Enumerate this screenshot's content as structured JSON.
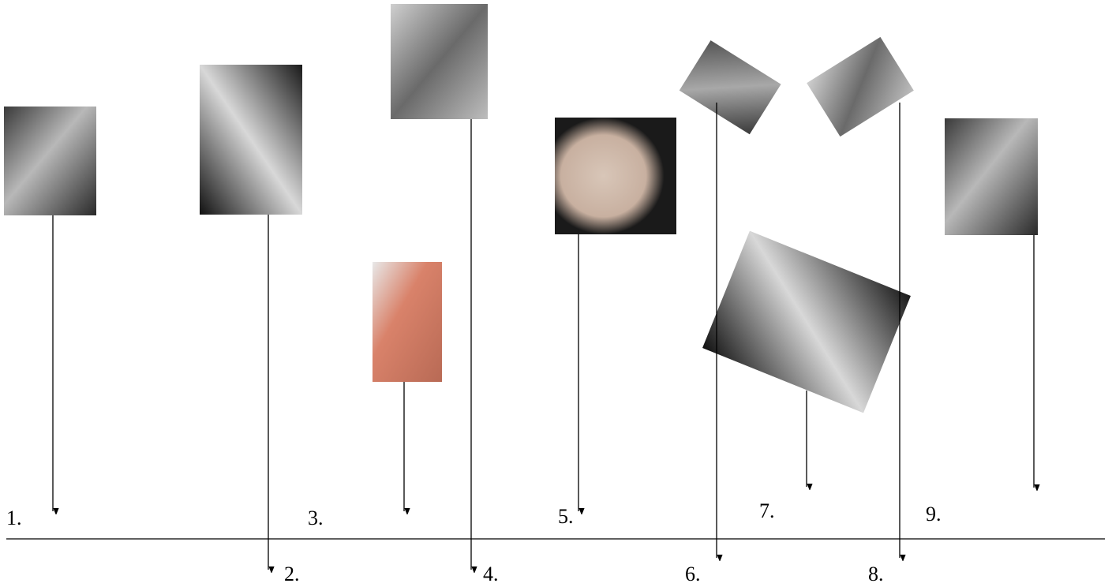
{
  "labels": [
    "1.",
    "2.",
    "3.",
    "4.",
    "5.",
    "6.",
    "7.",
    "8.",
    "9."
  ]
}
